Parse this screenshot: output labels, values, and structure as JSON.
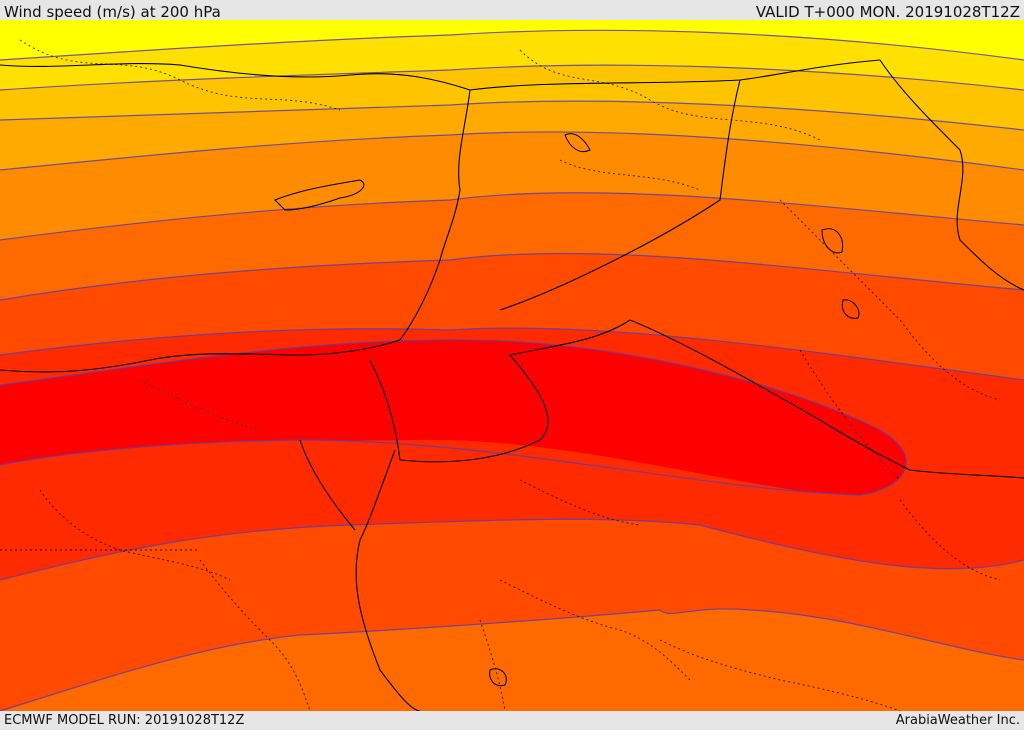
{
  "header": {
    "title": "Wind speed (m/s) at 200 hPa",
    "valid": "VALID T+000 MON. 20191028T12Z"
  },
  "footer": {
    "model_run": "ECMWF MODEL RUN: 20191028T12Z",
    "credit": "ArabiaWeather Inc."
  },
  "map": {
    "variable": "wind speed",
    "level": "200 hPa",
    "units": "m/s",
    "colors": {
      "band_1": "#ffff00",
      "band_2": "#ffe000",
      "band_3": "#ffc400",
      "band_4": "#ffaa00",
      "band_5": "#ff8c00",
      "band_6": "#ff6a00",
      "band_7": "#ff4a00",
      "band_8": "#ff2a00",
      "band_9": "#ff0000",
      "contour_line": "#5a3fb0",
      "border_line": "#000000"
    }
  }
}
